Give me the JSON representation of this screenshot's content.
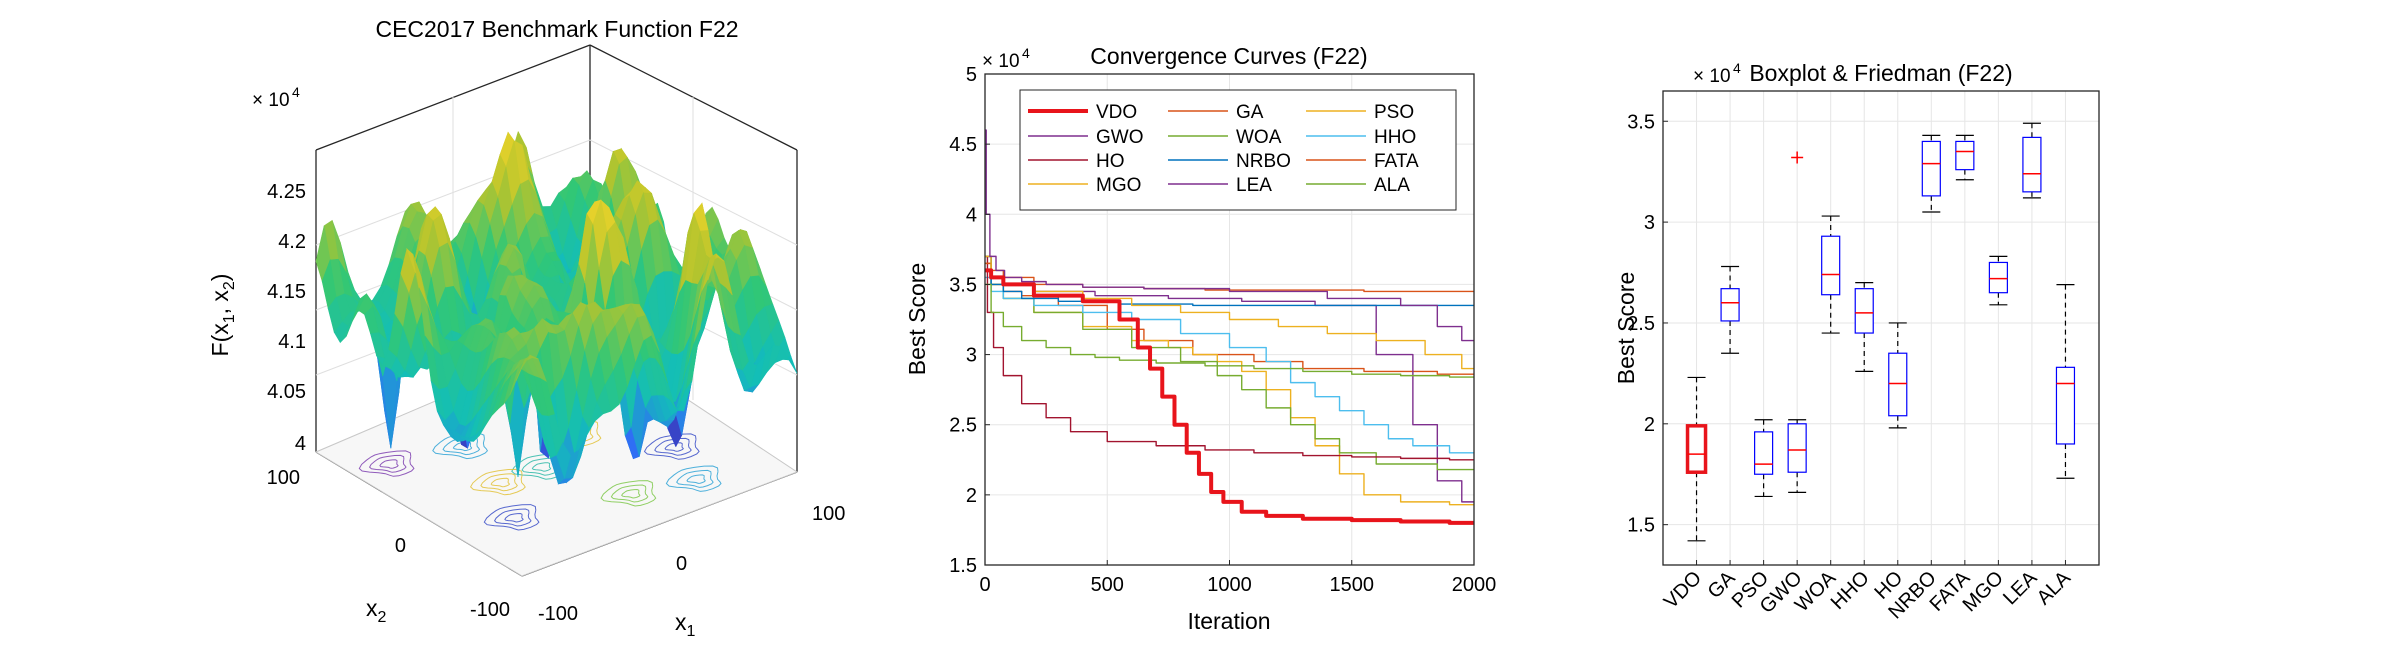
{
  "chart_data": [
    {
      "type": "surface3d",
      "title": "CEC2017 Benchmark Function F22",
      "xlabel": "x",
      "xlabel_sub": "1",
      "ylabel": "x",
      "ylabel_sub": "2",
      "zlabel_main": "F(x",
      "zlabel_sub1": "1",
      "zlabel_mid": ", x",
      "zlabel_sub2": "2",
      "zlabel_end": ")",
      "exponent_base": "× 10",
      "exponent_power": "4",
      "zticks": [
        "4",
        "4.05",
        "4.1",
        "4.15",
        "4.2",
        "4.25"
      ],
      "xticks": [
        "-100",
        "0",
        "100"
      ],
      "yticks": [
        "-100",
        "0",
        "100"
      ],
      "zlim": [
        4.0,
        4.28
      ],
      "xlim": [
        -100,
        100
      ],
      "ylim": [
        -100,
        100
      ]
    },
    {
      "type": "line",
      "title": "Convergence Curves (F22)",
      "xlabel": "Iteration",
      "ylabel": "Best Score",
      "exponent_base": "× 10",
      "exponent_power": "4",
      "xlim": [
        0,
        2000
      ],
      "ylim": [
        1.5,
        5
      ],
      "xticks": [
        "0",
        "500",
        "1000",
        "1500",
        "2000"
      ],
      "yticks": [
        "1.5",
        "2",
        "2.5",
        "3",
        "3.5",
        "4",
        "4.5",
        "5"
      ],
      "series": [
        {
          "name": "VDO",
          "color": "#e8141b",
          "width": 4,
          "x": [
            0,
            50,
            100,
            300,
            500,
            600,
            650,
            700,
            750,
            800,
            850,
            900,
            950,
            1000,
            1100,
            1200,
            1400,
            1600,
            1800,
            2000
          ],
          "values": [
            3.6,
            3.55,
            3.5,
            3.42,
            3.38,
            3.25,
            3.05,
            2.9,
            2.7,
            2.5,
            2.3,
            2.15,
            2.02,
            1.95,
            1.88,
            1.85,
            1.83,
            1.82,
            1.81,
            1.8
          ]
        },
        {
          "name": "GA",
          "color": "#d95319",
          "width": 1.4,
          "x": [
            0,
            50,
            100,
            200,
            400,
            600,
            700,
            1000,
            1200,
            1400,
            1700,
            2000
          ],
          "values": [
            3.7,
            3.5,
            3.45,
            3.42,
            3.35,
            3.18,
            3.1,
            3.0,
            2.95,
            2.9,
            2.88,
            2.86
          ]
        },
        {
          "name": "PSO",
          "color": "#edb120",
          "width": 1.4,
          "x": [
            0,
            50,
            100,
            300,
            500,
            700,
            800,
            900,
            1000,
            1100,
            1200,
            1300,
            1400,
            1500,
            1600,
            1800,
            2000
          ],
          "values": [
            3.65,
            3.5,
            3.4,
            3.3,
            3.2,
            3.1,
            3.05,
            3.0,
            2.95,
            2.88,
            2.75,
            2.55,
            2.35,
            2.15,
            2.0,
            1.95,
            1.93
          ]
        },
        {
          "name": "GWO",
          "color": "#7e2f8e",
          "width": 1.4,
          "x": [
            0,
            50,
            100,
            300,
            600,
            900,
            1200,
            1500,
            1700,
            1800,
            1900,
            2000
          ],
          "values": [
            3.6,
            3.55,
            3.5,
            3.45,
            3.42,
            3.4,
            3.38,
            3.35,
            3.0,
            2.5,
            2.1,
            1.95
          ]
        },
        {
          "name": "WOA",
          "color": "#77ac30",
          "width": 1.4,
          "x": [
            0,
            50,
            100,
            300,
            500,
            700,
            900,
            1000,
            1100,
            1200,
            1300,
            1400,
            1500,
            1700,
            2000
          ],
          "values": [
            3.7,
            3.5,
            3.4,
            3.3,
            3.18,
            3.05,
            2.95,
            2.85,
            2.75,
            2.62,
            2.5,
            2.4,
            2.3,
            2.22,
            2.18
          ]
        },
        {
          "name": "HHO",
          "color": "#4dbeee",
          "width": 1.4,
          "x": [
            0,
            50,
            100,
            300,
            500,
            700,
            900,
            1100,
            1200,
            1300,
            1400,
            1500,
            1600,
            1700,
            1800,
            2000
          ],
          "values": [
            3.55,
            3.45,
            3.4,
            3.35,
            3.3,
            3.25,
            3.15,
            3.05,
            2.95,
            2.8,
            2.7,
            2.6,
            2.5,
            2.4,
            2.35,
            2.3
          ]
        },
        {
          "name": "HO",
          "color": "#a2142f",
          "width": 1.4,
          "x": [
            0,
            20,
            50,
            100,
            200,
            300,
            400,
            600,
            800,
            1000,
            1200,
            1400,
            1600,
            1800,
            2000
          ],
          "values": [
            3.7,
            3.3,
            3.05,
            2.85,
            2.65,
            2.55,
            2.45,
            2.38,
            2.35,
            2.32,
            2.3,
            2.28,
            2.27,
            2.26,
            2.25
          ]
        },
        {
          "name": "NRBO",
          "color": "#0072bd",
          "width": 1.4,
          "x": [
            0,
            50,
            100,
            200,
            400,
            700,
            1000,
            1500,
            2000
          ],
          "values": [
            3.7,
            3.5,
            3.45,
            3.4,
            3.38,
            3.36,
            3.35,
            3.35,
            3.35
          ]
        },
        {
          "name": "FATA",
          "color": "#d95319",
          "width": 1.4,
          "x": [
            0,
            50,
            100,
            300,
            500,
            800,
            1000,
            1400,
            1700,
            2000
          ],
          "values": [
            3.65,
            3.6,
            3.55,
            3.5,
            3.48,
            3.47,
            3.46,
            3.46,
            3.45,
            3.45
          ]
        },
        {
          "name": "MGO",
          "color": "#edb120",
          "width": 1.4,
          "x": [
            0,
            50,
            100,
            300,
            500,
            700,
            900,
            1100,
            1300,
            1500,
            1700,
            1900,
            2000
          ],
          "values": [
            3.7,
            3.55,
            3.5,
            3.45,
            3.4,
            3.35,
            3.3,
            3.25,
            3.2,
            3.15,
            3.1,
            3.0,
            2.9
          ]
        },
        {
          "name": "LEA",
          "color": "#7e2f8e",
          "width": 1.4,
          "x": [
            0,
            10,
            30,
            60,
            100,
            200,
            300,
            500,
            800,
            1200,
            1600,
            1800,
            1900,
            2000
          ],
          "values": [
            4.6,
            4.0,
            3.7,
            3.6,
            3.55,
            3.52,
            3.5,
            3.48,
            3.47,
            3.45,
            3.4,
            3.35,
            3.2,
            3.1
          ]
        },
        {
          "name": "ALA",
          "color": "#77ac30",
          "width": 1.4,
          "x": [
            0,
            50,
            100,
            200,
            300,
            400,
            500,
            600,
            800,
            1000,
            1200,
            1400,
            1600,
            1800,
            2000
          ],
          "values": [
            3.5,
            3.3,
            3.2,
            3.1,
            3.05,
            3.0,
            2.98,
            2.96,
            2.94,
            2.92,
            2.9,
            2.88,
            2.86,
            2.85,
            2.84
          ]
        }
      ]
    },
    {
      "type": "boxplot",
      "title": "Boxplot & Friedman (F22)",
      "ylabel": "Best Score",
      "exponent_base": "× 10",
      "exponent_power": "4",
      "ylim": [
        1.3,
        3.65
      ],
      "yticks": [
        "1.5",
        "2",
        "2.5",
        "3",
        "3.5"
      ],
      "categories": [
        "VDO",
        "GA",
        "PSO",
        "GWO",
        "WOA",
        "HHO",
        "HO",
        "NRBO",
        "FATA",
        "MGO",
        "LEA",
        "ALA"
      ],
      "box_color": "#0000ff",
      "median_color": "#ff0000",
      "highlight": "VDO",
      "boxes": [
        {
          "min": 1.42,
          "q1": 1.76,
          "median": 1.85,
          "q3": 1.99,
          "max": 2.23
        },
        {
          "min": 2.35,
          "q1": 2.51,
          "median": 2.6,
          "q3": 2.67,
          "max": 2.78
        },
        {
          "min": 1.64,
          "q1": 1.75,
          "median": 1.8,
          "q3": 1.96,
          "max": 2.02
        },
        {
          "min": 1.66,
          "q1": 1.76,
          "median": 1.87,
          "q3": 2.0,
          "max": 2.02,
          "outliers": [
            3.32
          ]
        },
        {
          "min": 2.45,
          "q1": 2.64,
          "median": 2.74,
          "q3": 2.93,
          "max": 3.03
        },
        {
          "min": 2.26,
          "q1": 2.45,
          "median": 2.55,
          "q3": 2.67,
          "max": 2.7
        },
        {
          "min": 1.98,
          "q1": 2.04,
          "median": 2.2,
          "q3": 2.35,
          "max": 2.5
        },
        {
          "min": 3.05,
          "q1": 3.13,
          "median": 3.29,
          "q3": 3.4,
          "max": 3.43
        },
        {
          "min": 3.21,
          "q1": 3.26,
          "median": 3.35,
          "q3": 3.4,
          "max": 3.43
        },
        {
          "min": 2.59,
          "q1": 2.65,
          "median": 2.72,
          "q3": 2.8,
          "max": 2.83
        },
        {
          "min": 3.12,
          "q1": 3.15,
          "median": 3.24,
          "q3": 3.42,
          "max": 3.49
        },
        {
          "min": 1.73,
          "q1": 1.9,
          "median": 2.2,
          "q3": 2.28,
          "max": 2.69
        }
      ]
    }
  ]
}
